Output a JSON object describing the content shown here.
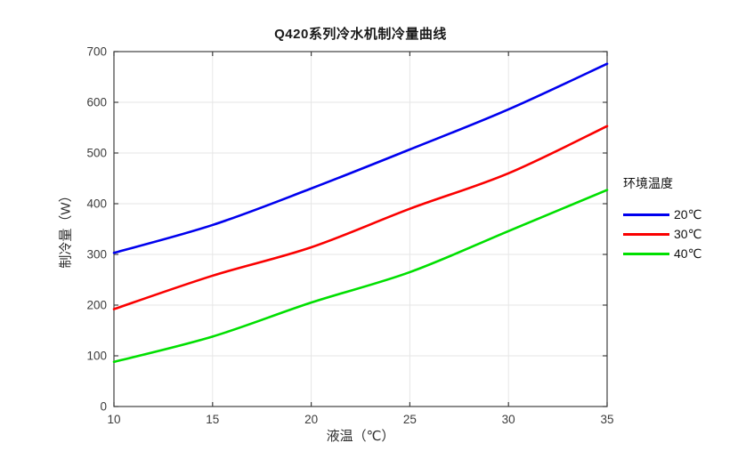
{
  "page": {
    "background": "#ffffff"
  },
  "chart_data": {
    "type": "line",
    "title": "Q420系列冷水机制冷量曲线",
    "xlabel": "液温（℃）",
    "ylabel": "制冷量（W）",
    "x": [
      10,
      15,
      20,
      25,
      30,
      35
    ],
    "xlim": [
      10,
      35
    ],
    "ylim": [
      0,
      700
    ],
    "xticks": [
      10,
      15,
      20,
      25,
      30,
      35
    ],
    "yticks": [
      0,
      100,
      200,
      300,
      400,
      500,
      600,
      700
    ],
    "grid": true,
    "legend_title": "环境温度",
    "legend_position": "right-outside",
    "series": [
      {
        "name": "20℃",
        "color": "#0000EE",
        "values": [
          303,
          358,
          430,
          507,
          586,
          676
        ]
      },
      {
        "name": "30℃",
        "color": "#FA0000",
        "values": [
          192,
          258,
          314,
          390,
          460,
          553
        ]
      },
      {
        "name": "40℃",
        "color": "#00DF00",
        "values": [
          88,
          138,
          205,
          265,
          346,
          427
        ]
      }
    ],
    "colors": {
      "axis": "#3f3f3f",
      "grid": "#e6e6e6",
      "tick_label": "#3c3c3c"
    }
  }
}
